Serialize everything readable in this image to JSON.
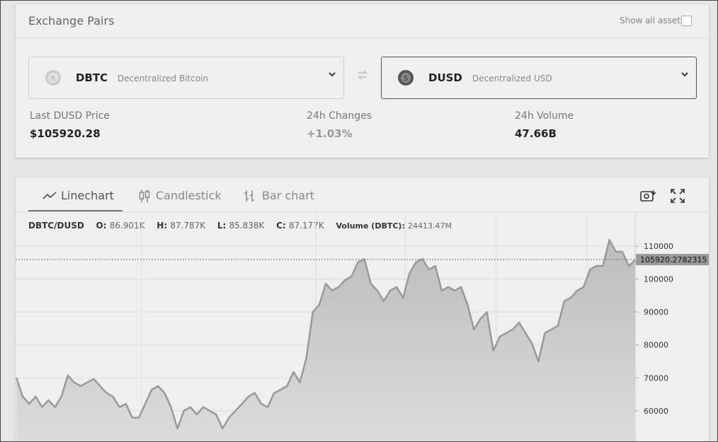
{
  "header": {
    "title": "Exchange Pairs",
    "toggle": "Show all assets"
  },
  "pair": {
    "base": {
      "symbol": "DBTC",
      "name": "Decentralized Bitcoin"
    },
    "quote": {
      "symbol": "DUSD",
      "name": "Decentralized USD"
    }
  },
  "stats": [
    {
      "label": "Last DUSD Price",
      "value": "$105920.28"
    },
    {
      "label": "24h Changes",
      "value": "+1.03%"
    },
    {
      "label": "24h Volume",
      "value": "47.66B"
    }
  ],
  "tabs": [
    "Linechart",
    "Candlestick",
    "Bar chart"
  ],
  "legend": {
    "pair": "DBTC/DUSD",
    "items": [
      {
        "label": "O:",
        "value": "86.901K"
      },
      {
        "label": "H:",
        "value": "87.787K"
      },
      {
        "label": "L:",
        "value": "85.838K"
      },
      {
        "label": "C:",
        "value": "87.177K"
      }
    ],
    "volume_label": "Volume (DBTC):",
    "volume": "24413.47M"
  },
  "chart_data": {
    "type": "line",
    "color": "#999999",
    "grid": true,
    "values": [
      70100,
      64300,
      62100,
      64300,
      61100,
      63200,
      61100,
      64300,
      70700,
      68600,
      67500,
      68600,
      69700,
      67500,
      65400,
      64300,
      61100,
      62100,
      57900,
      57900,
      62100,
      66400,
      67500,
      65400,
      61100,
      54600,
      60000,
      61100,
      58900,
      61100,
      60000,
      58900,
      54600,
      57900,
      60000,
      62100,
      64300,
      65400,
      62100,
      61100,
      65400,
      66400,
      67500,
      71800,
      68600,
      76100,
      90000,
      92200,
      98600,
      96500,
      97600,
      99700,
      100800,
      105100,
      106100,
      98600,
      96500,
      93300,
      96500,
      97600,
      94300,
      101800,
      105100,
      106100,
      102900,
      104000,
      96500,
      97600,
      96500,
      97600,
      92200,
      84700,
      87900,
      90000,
      78200,
      82500,
      83600,
      84700,
      86800,
      83600,
      80400,
      75000,
      83600,
      84700,
      85800,
      93300,
      94300,
      96500,
      97600,
      102900,
      104000,
      104000,
      111900,
      108300,
      108300,
      104000,
      105700
    ],
    "ylim": [
      50300,
      120100
    ],
    "yticks": [
      60000,
      70000,
      80000,
      90000,
      100000,
      110000
    ],
    "last_price": 105920.2782315
  }
}
